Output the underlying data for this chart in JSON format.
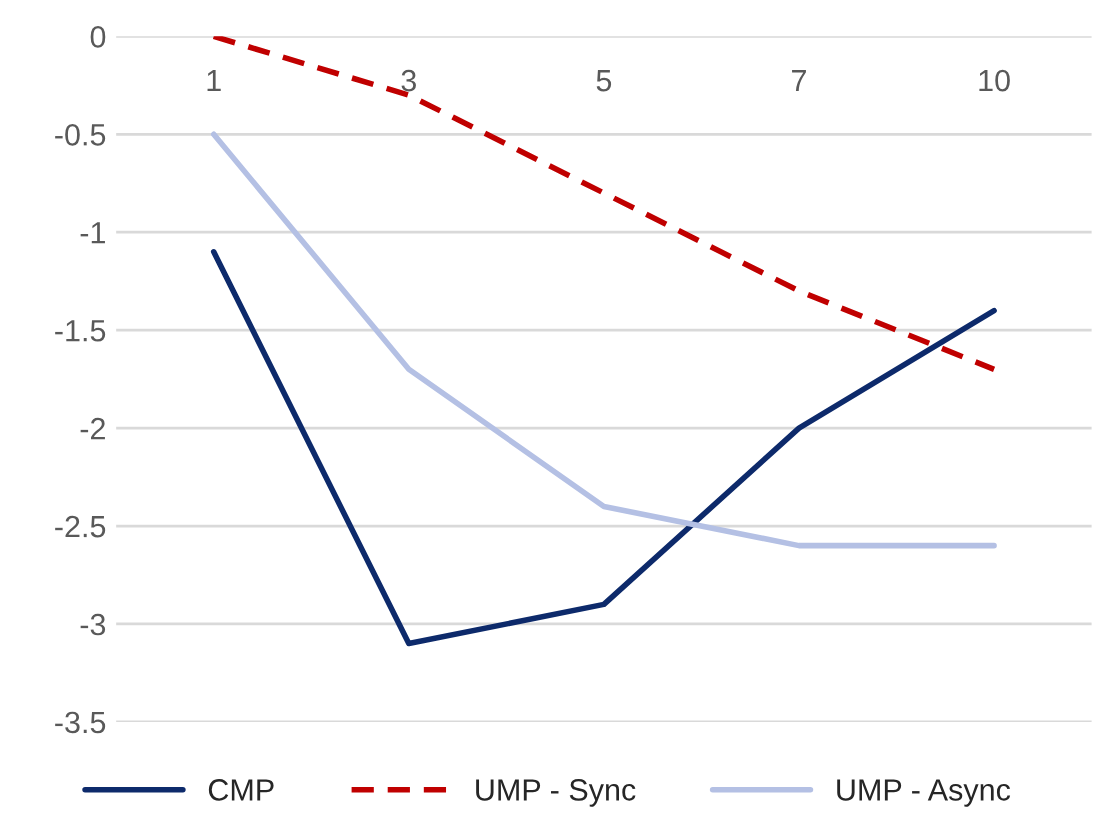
{
  "chart_data": {
    "type": "line",
    "categories": [
      "1",
      "3",
      "5",
      "7",
      "10"
    ],
    "series": [
      {
        "name": "CMP",
        "color": "#0d2a6b",
        "values": [
          -1.1,
          -3.1,
          -2.9,
          -2.0,
          -1.4
        ],
        "line_style": "solid"
      },
      {
        "name": "UMP - Sync",
        "color": "#c00000",
        "values": [
          0,
          -0.3,
          -0.8,
          -1.3,
          -1.7
        ],
        "line_style": "dashed"
      },
      {
        "name": "UMP - Async",
        "color": "#b4c0e4",
        "values": [
          -0.5,
          -1.7,
          -2.4,
          -2.6,
          -2.6
        ],
        "line_style": "solid"
      }
    ],
    "ylim": [
      -3.5,
      0
    ],
    "yticks": [
      0,
      -0.5,
      -1,
      -1.5,
      -2,
      -2.5,
      -3,
      -3.5
    ],
    "grid": "y",
    "legend": "bottom"
  }
}
